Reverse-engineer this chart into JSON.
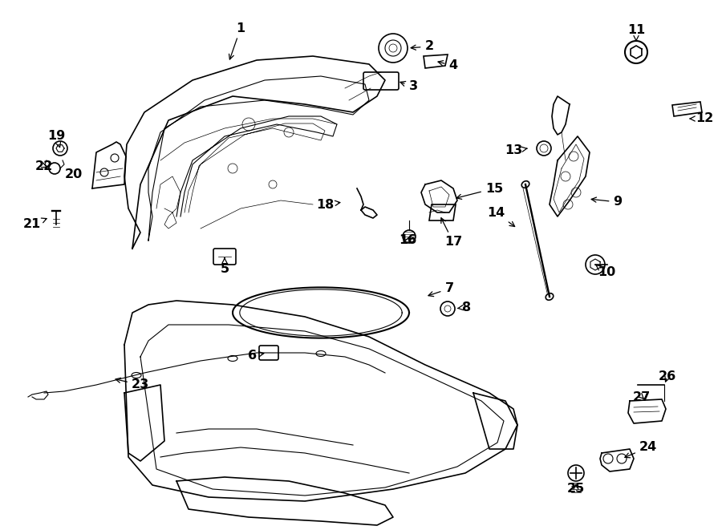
{
  "bg_color": "#ffffff",
  "line_color": "#000000",
  "text_color": "#000000",
  "fig_width": 9.0,
  "fig_height": 6.61,
  "dpi": 100
}
